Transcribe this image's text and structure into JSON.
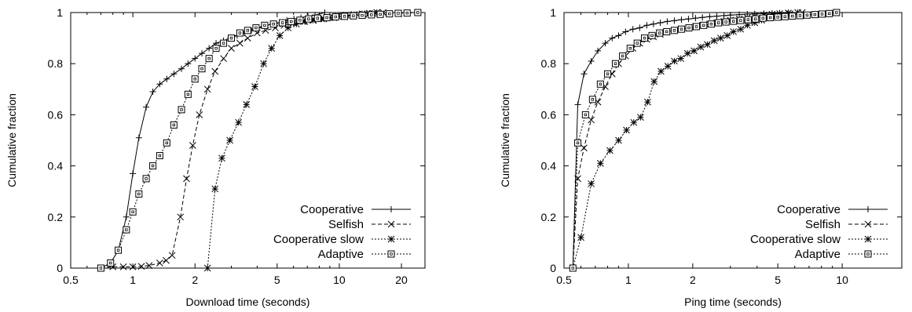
{
  "chart_data": [
    {
      "type": "line",
      "xlabel": "Download time (seconds)",
      "ylabel": "Cumulative fraction",
      "x_scale": "log",
      "xlim": [
        0.5,
        26
      ],
      "ylim": [
        0,
        1
      ],
      "x_ticks": [
        0.5,
        1,
        2,
        5,
        10,
        20
      ],
      "x_tick_labels": [
        "0.5",
        "1",
        "2",
        "5",
        "10",
        "20"
      ],
      "y_ticks": [
        0,
        0.2,
        0.4,
        0.6,
        0.8,
        1
      ],
      "y_tick_labels": [
        "0",
        "0.2",
        "0.4",
        "0.6",
        "0.8",
        "1"
      ],
      "grid": false,
      "legend_position": "bottom-right",
      "series": [
        {
          "name": "Cooperative",
          "line_style": "solid",
          "marker": "plus",
          "x": [
            0.7,
            0.78,
            0.85,
            0.93,
            1.0,
            1.07,
            1.16,
            1.25,
            1.35,
            1.46,
            1.58,
            1.72,
            1.85,
            2.0,
            2.16,
            2.34,
            2.53,
            2.75,
            2.97,
            3.2,
            3.47,
            3.75,
            4.06,
            4.4,
            4.76,
            5.15,
            5.57,
            6.03,
            6.52,
            7.05,
            7.63,
            8.5
          ],
          "y": [
            0.0,
            0.02,
            0.07,
            0.2,
            0.37,
            0.51,
            0.63,
            0.69,
            0.72,
            0.74,
            0.76,
            0.78,
            0.8,
            0.82,
            0.84,
            0.86,
            0.88,
            0.89,
            0.9,
            0.91,
            0.92,
            0.93,
            0.94,
            0.95,
            0.955,
            0.96,
            0.97,
            0.975,
            0.98,
            0.985,
            0.99,
            1.0
          ]
        },
        {
          "name": "Selfish",
          "line_style": "dashed",
          "marker": "cross",
          "x": [
            0.7,
            0.8,
            0.9,
            1.0,
            1.1,
            1.2,
            1.35,
            1.45,
            1.55,
            1.7,
            1.82,
            1.95,
            2.1,
            2.3,
            2.5,
            2.75,
            3.0,
            3.3,
            3.6,
            4.0,
            4.4,
            4.9,
            5.4,
            6.0,
            6.7,
            7.5,
            8.4,
            9.4,
            10.5,
            11.7,
            13.1,
            14.6,
            16.3
          ],
          "y": [
            0.0,
            0.005,
            0.005,
            0.005,
            0.007,
            0.01,
            0.02,
            0.03,
            0.05,
            0.2,
            0.35,
            0.48,
            0.6,
            0.7,
            0.77,
            0.82,
            0.86,
            0.88,
            0.9,
            0.92,
            0.93,
            0.94,
            0.95,
            0.96,
            0.965,
            0.97,
            0.975,
            0.98,
            0.985,
            0.99,
            0.993,
            0.996,
            1.0
          ]
        },
        {
          "name": "Cooperative slow",
          "line_style": "dotted",
          "marker": "star",
          "x": [
            2.3,
            2.5,
            2.7,
            2.95,
            3.25,
            3.55,
            3.9,
            4.3,
            4.7,
            5.15,
            5.65,
            6.2,
            6.8,
            7.45,
            8.2,
            9.0,
            9.85,
            10.8,
            11.8,
            12.9,
            14.0,
            15.2
          ],
          "y": [
            0.0,
            0.31,
            0.43,
            0.5,
            0.57,
            0.64,
            0.71,
            0.8,
            0.86,
            0.91,
            0.94,
            0.955,
            0.965,
            0.97,
            0.975,
            0.98,
            0.985,
            0.99,
            0.992,
            0.995,
            0.997,
            1.0
          ]
        },
        {
          "name": "Adaptive",
          "line_style": "dotted",
          "marker": "square",
          "x": [
            0.7,
            0.78,
            0.85,
            0.93,
            1.0,
            1.07,
            1.16,
            1.25,
            1.35,
            1.46,
            1.58,
            1.72,
            1.85,
            2.0,
            2.16,
            2.34,
            2.53,
            2.75,
            3.0,
            3.3,
            3.6,
            3.95,
            4.35,
            4.8,
            5.3,
            5.85,
            6.45,
            7.1,
            7.85,
            8.7,
            9.6,
            10.6,
            11.7,
            12.9,
            14.3,
            15.8,
            17.5,
            19.3,
            21.3,
            24.0
          ],
          "y": [
            0.0,
            0.02,
            0.07,
            0.15,
            0.22,
            0.29,
            0.35,
            0.4,
            0.44,
            0.49,
            0.56,
            0.62,
            0.68,
            0.74,
            0.78,
            0.82,
            0.86,
            0.88,
            0.9,
            0.92,
            0.93,
            0.94,
            0.95,
            0.955,
            0.96,
            0.965,
            0.97,
            0.975,
            0.978,
            0.98,
            0.983,
            0.985,
            0.987,
            0.989,
            0.991,
            0.993,
            0.995,
            0.997,
            0.998,
            1.0
          ]
        }
      ]
    },
    {
      "type": "line",
      "xlabel": "Ping time (seconds)",
      "ylabel": "Cumulative fraction",
      "x_scale": "log",
      "xlim": [
        0.5,
        19
      ],
      "ylim": [
        0,
        1
      ],
      "x_ticks": [
        0.5,
        1,
        2,
        5,
        10
      ],
      "x_tick_labels": [
        "0.5",
        "1",
        "2",
        "5",
        "10"
      ],
      "y_ticks": [
        0,
        0.2,
        0.4,
        0.6,
        0.8,
        1
      ],
      "y_tick_labels": [
        "0",
        "0.2",
        "0.4",
        "0.6",
        "0.8",
        "1"
      ],
      "grid": false,
      "legend_position": "bottom-right",
      "series": [
        {
          "name": "Cooperative",
          "line_style": "solid",
          "marker": "plus",
          "x": [
            0.55,
            0.58,
            0.62,
            0.67,
            0.72,
            0.78,
            0.84,
            0.9,
            0.97,
            1.05,
            1.13,
            1.22,
            1.31,
            1.41,
            1.52,
            1.64,
            1.77,
            1.91,
            2.06,
            2.22,
            2.4,
            2.59,
            2.8,
            3.0,
            3.3,
            3.6,
            3.9,
            4.3,
            4.7,
            5.1,
            5.6
          ],
          "y": [
            0.0,
            0.64,
            0.76,
            0.81,
            0.85,
            0.88,
            0.9,
            0.91,
            0.925,
            0.935,
            0.94,
            0.95,
            0.955,
            0.96,
            0.965,
            0.968,
            0.972,
            0.975,
            0.978,
            0.981,
            0.984,
            0.986,
            0.988,
            0.99,
            0.992,
            0.994,
            0.995,
            0.996,
            0.997,
            0.998,
            1.0
          ]
        },
        {
          "name": "Selfish",
          "line_style": "dashed",
          "marker": "cross",
          "x": [
            0.55,
            0.58,
            0.62,
            0.67,
            0.72,
            0.78,
            0.84,
            0.9,
            0.97,
            1.05,
            1.13,
            1.22,
            1.31,
            1.41,
            1.52,
            1.64,
            1.77,
            1.91,
            2.06,
            2.22,
            2.4,
            2.59,
            2.8,
            3.0,
            3.3,
            3.6,
            3.9,
            4.3,
            4.7,
            5.1,
            5.6,
            6.5
          ],
          "y": [
            0.0,
            0.35,
            0.47,
            0.58,
            0.65,
            0.71,
            0.76,
            0.8,
            0.83,
            0.86,
            0.88,
            0.895,
            0.905,
            0.915,
            0.925,
            0.93,
            0.935,
            0.94,
            0.945,
            0.95,
            0.955,
            0.96,
            0.965,
            0.97,
            0.975,
            0.98,
            0.985,
            0.99,
            0.993,
            0.996,
            0.998,
            1.0
          ]
        },
        {
          "name": "Cooperative slow",
          "line_style": "dotted",
          "marker": "star",
          "x": [
            0.55,
            0.6,
            0.67,
            0.74,
            0.82,
            0.9,
            0.98,
            1.06,
            1.14,
            1.23,
            1.32,
            1.42,
            1.53,
            1.64,
            1.76,
            1.89,
            2.03,
            2.18,
            2.34,
            2.52,
            2.7,
            2.9,
            3.1,
            3.35,
            3.6,
            3.9,
            4.2,
            4.5,
            4.9,
            5.3,
            5.7,
            6.2
          ],
          "y": [
            0.0,
            0.12,
            0.33,
            0.41,
            0.46,
            0.5,
            0.54,
            0.57,
            0.59,
            0.65,
            0.73,
            0.77,
            0.79,
            0.81,
            0.82,
            0.84,
            0.85,
            0.865,
            0.875,
            0.89,
            0.9,
            0.91,
            0.925,
            0.935,
            0.95,
            0.96,
            0.97,
            0.98,
            0.985,
            0.99,
            0.995,
            1.0
          ]
        },
        {
          "name": "Adaptive",
          "line_style": "dotted",
          "marker": "square",
          "x": [
            0.55,
            0.58,
            0.63,
            0.68,
            0.74,
            0.8,
            0.87,
            0.94,
            1.02,
            1.1,
            1.19,
            1.29,
            1.4,
            1.51,
            1.64,
            1.77,
            1.92,
            2.08,
            2.25,
            2.44,
            2.64,
            2.86,
            3.1,
            3.35,
            3.63,
            3.93,
            4.26,
            4.61,
            5.0,
            5.4,
            5.85,
            6.35,
            6.85,
            7.45,
            8.05,
            8.7,
            9.4
          ],
          "y": [
            0.0,
            0.49,
            0.6,
            0.66,
            0.72,
            0.76,
            0.8,
            0.83,
            0.86,
            0.88,
            0.9,
            0.91,
            0.92,
            0.925,
            0.93,
            0.935,
            0.94,
            0.945,
            0.95,
            0.955,
            0.96,
            0.963,
            0.966,
            0.969,
            0.972,
            0.975,
            0.978,
            0.98,
            0.982,
            0.984,
            0.986,
            0.988,
            0.99,
            0.992,
            0.994,
            0.996,
            1.0
          ]
        }
      ]
    }
  ]
}
